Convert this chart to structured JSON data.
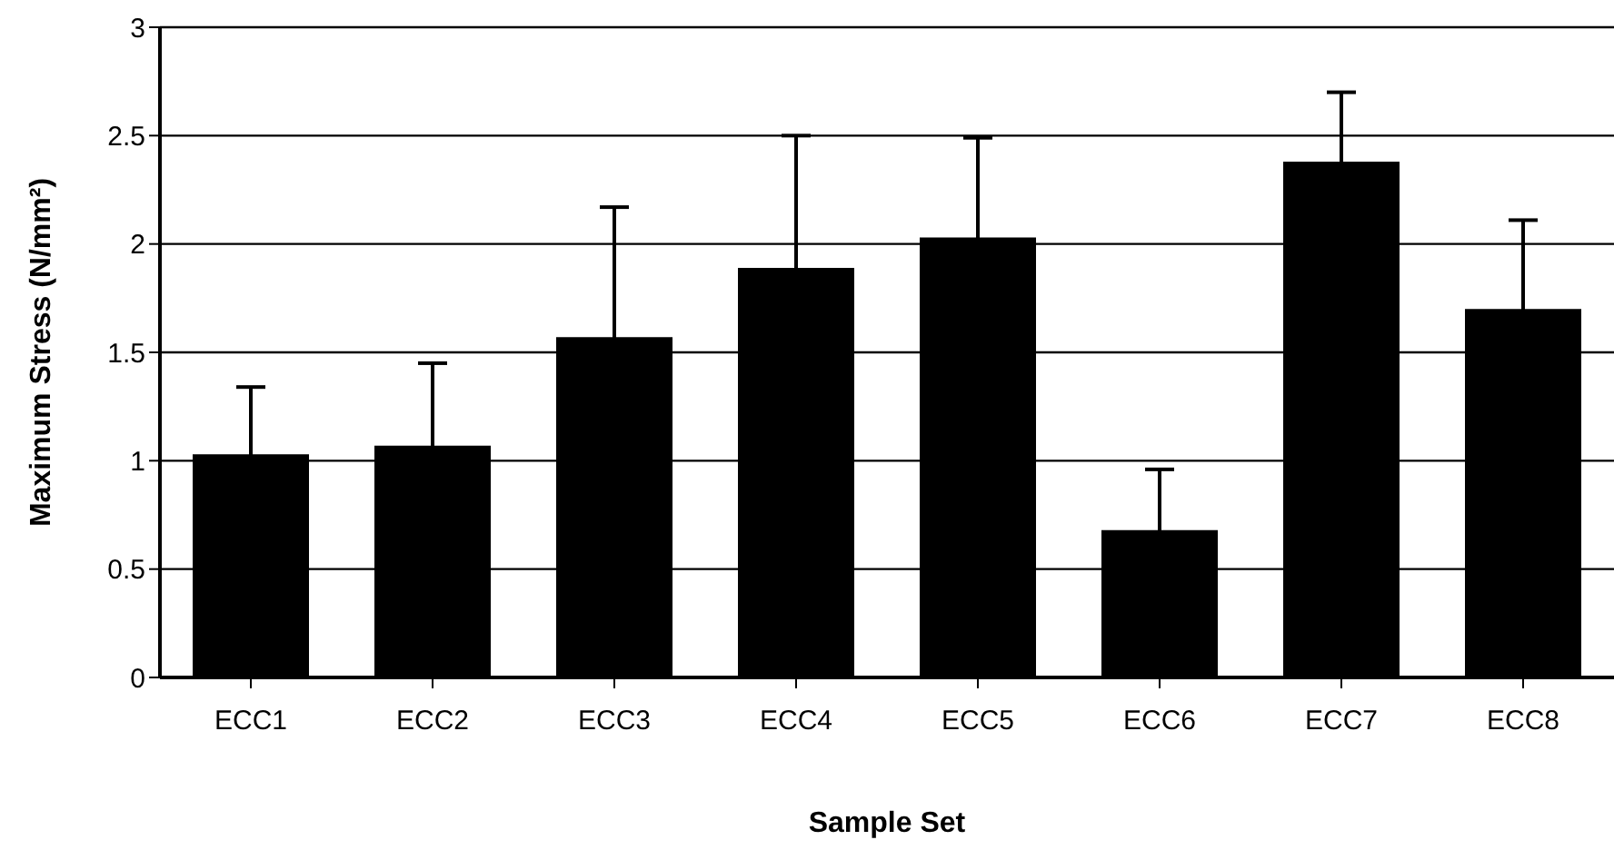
{
  "chart_data": {
    "type": "bar",
    "xlabel": "Sample Set",
    "ylabel": "Maximum Stress (N/mm²)",
    "categories": [
      "ECC1",
      "ECC2",
      "ECC3",
      "ECC4",
      "ECC5",
      "ECC6",
      "ECC7",
      "ECC8"
    ],
    "values": [
      1.03,
      1.07,
      1.57,
      1.89,
      2.03,
      0.68,
      2.38,
      1.7
    ],
    "errors": [
      0.31,
      0.38,
      0.6,
      0.61,
      0.46,
      0.28,
      0.32,
      0.41
    ],
    "color": "#000000",
    "ylim": [
      0,
      3
    ],
    "yticks": [
      0,
      0.5,
      1,
      1.5,
      2,
      2.5,
      3
    ],
    "grid": "y"
  }
}
